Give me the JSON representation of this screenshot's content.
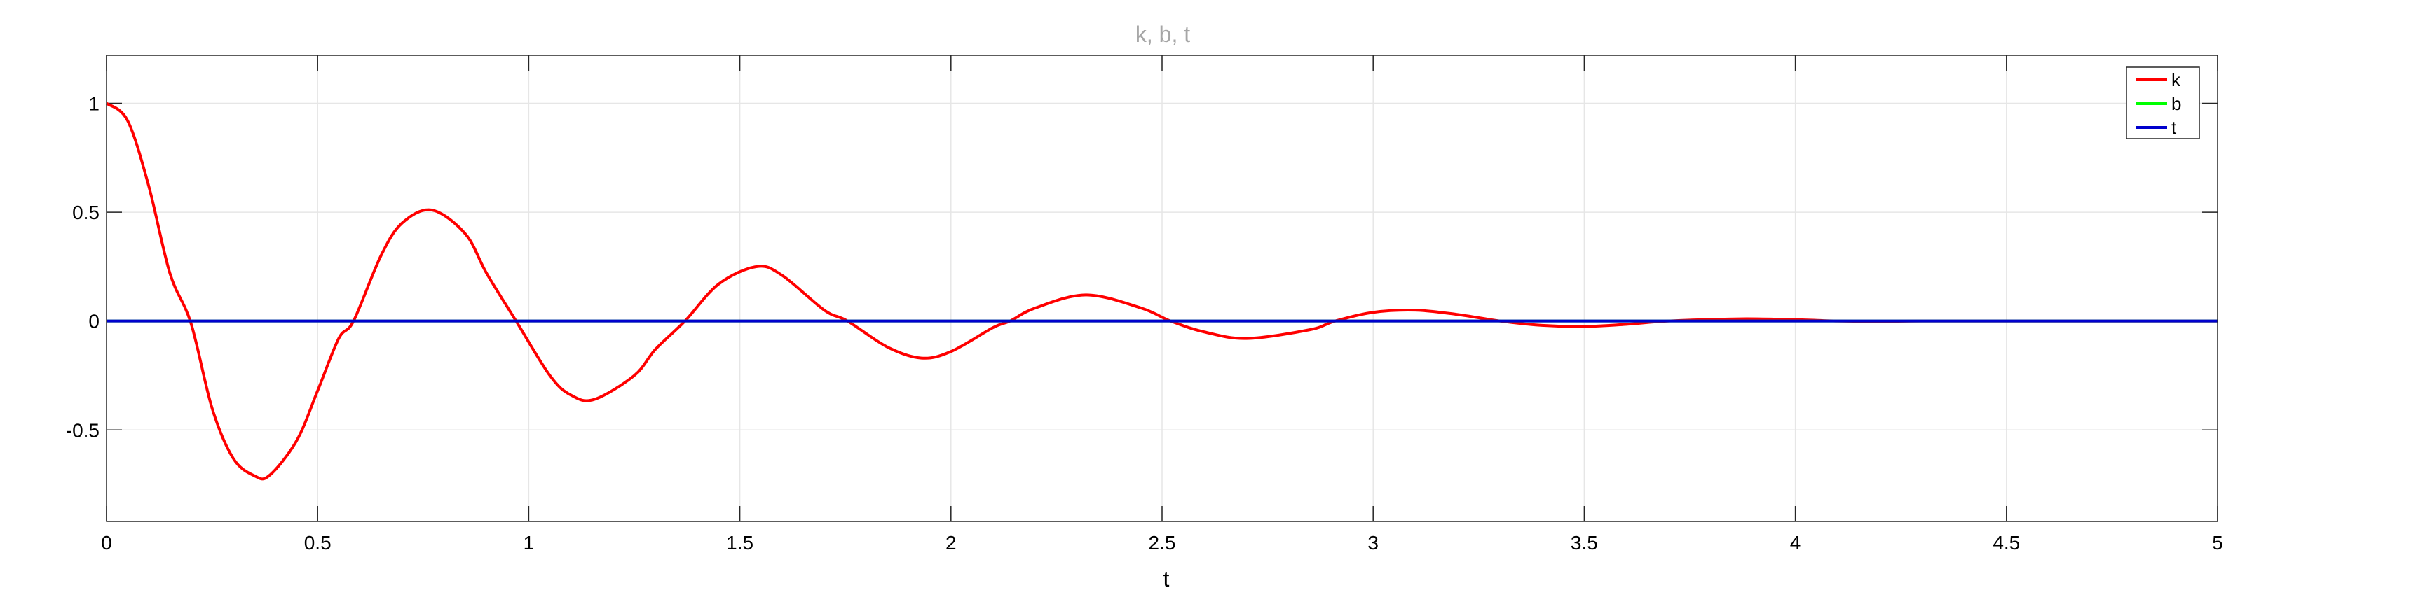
{
  "chart_data": {
    "type": "line",
    "title": "k, b, t",
    "xlabel": "t",
    "ylabel": "",
    "xlim": [
      0,
      5
    ],
    "ylim": [
      -0.92,
      1.22
    ],
    "x_ticks": [
      0,
      0.5,
      1,
      1.5,
      2,
      2.5,
      3,
      3.5,
      4,
      4.5,
      5
    ],
    "x_tick_labels": [
      "0",
      "0.5",
      "1",
      "1.5",
      "2",
      "2.5",
      "3",
      "3.5",
      "4",
      "4.5",
      "5"
    ],
    "y_ticks": [
      1,
      0.5,
      0,
      -0.5
    ],
    "y_tick_labels": [
      "1",
      "0.5",
      "0",
      "-0.5"
    ],
    "grid": true,
    "legend_position": "top-right",
    "series": [
      {
        "name": "k",
        "color": "#ff0000",
        "x": [
          0,
          0.05,
          0.1,
          0.15,
          0.2,
          0.25,
          0.3,
          0.35,
          0.385,
          0.45,
          0.5,
          0.55,
          0.585,
          0.65,
          0.7,
          0.77,
          0.85,
          0.9,
          0.97,
          1.05,
          1.1,
          1.155,
          1.25,
          1.3,
          1.37,
          1.45,
          1.54,
          1.6,
          1.7,
          1.755,
          1.85,
          1.93,
          2.0,
          2.1,
          2.14,
          2.2,
          2.32,
          2.45,
          2.52,
          2.6,
          2.7,
          2.85,
          2.91,
          3.0,
          3.1,
          3.2,
          3.3,
          3.4,
          3.5,
          3.6,
          3.7,
          3.87,
          4.0,
          4.1,
          4.2,
          4.3,
          4.5,
          4.75,
          5.0
        ],
        "y": [
          1.0,
          0.92,
          0.62,
          0.22,
          -0.01,
          -0.4,
          -0.63,
          -0.71,
          -0.71,
          -0.55,
          -0.32,
          -0.08,
          0.0,
          0.3,
          0.45,
          0.51,
          0.4,
          0.22,
          0.0,
          -0.25,
          -0.34,
          -0.36,
          -0.25,
          -0.13,
          0.0,
          0.17,
          0.25,
          0.21,
          0.05,
          0.0,
          -0.12,
          -0.17,
          -0.14,
          -0.03,
          0.0,
          0.06,
          0.12,
          0.06,
          0.0,
          -0.05,
          -0.08,
          -0.04,
          0.0,
          0.04,
          0.05,
          0.03,
          0.0,
          -0.02,
          -0.025,
          -0.015,
          0.0,
          0.01,
          0.006,
          0.0,
          -0.002,
          0.0,
          0.0,
          0.0,
          0.0
        ]
      },
      {
        "name": "b",
        "color": "#00ff00",
        "x": [
          0,
          5
        ],
        "y": [
          0,
          0
        ]
      },
      {
        "name": "t",
        "color": "#0000cd",
        "x": [
          0,
          5
        ],
        "y": [
          0,
          0
        ]
      }
    ]
  }
}
